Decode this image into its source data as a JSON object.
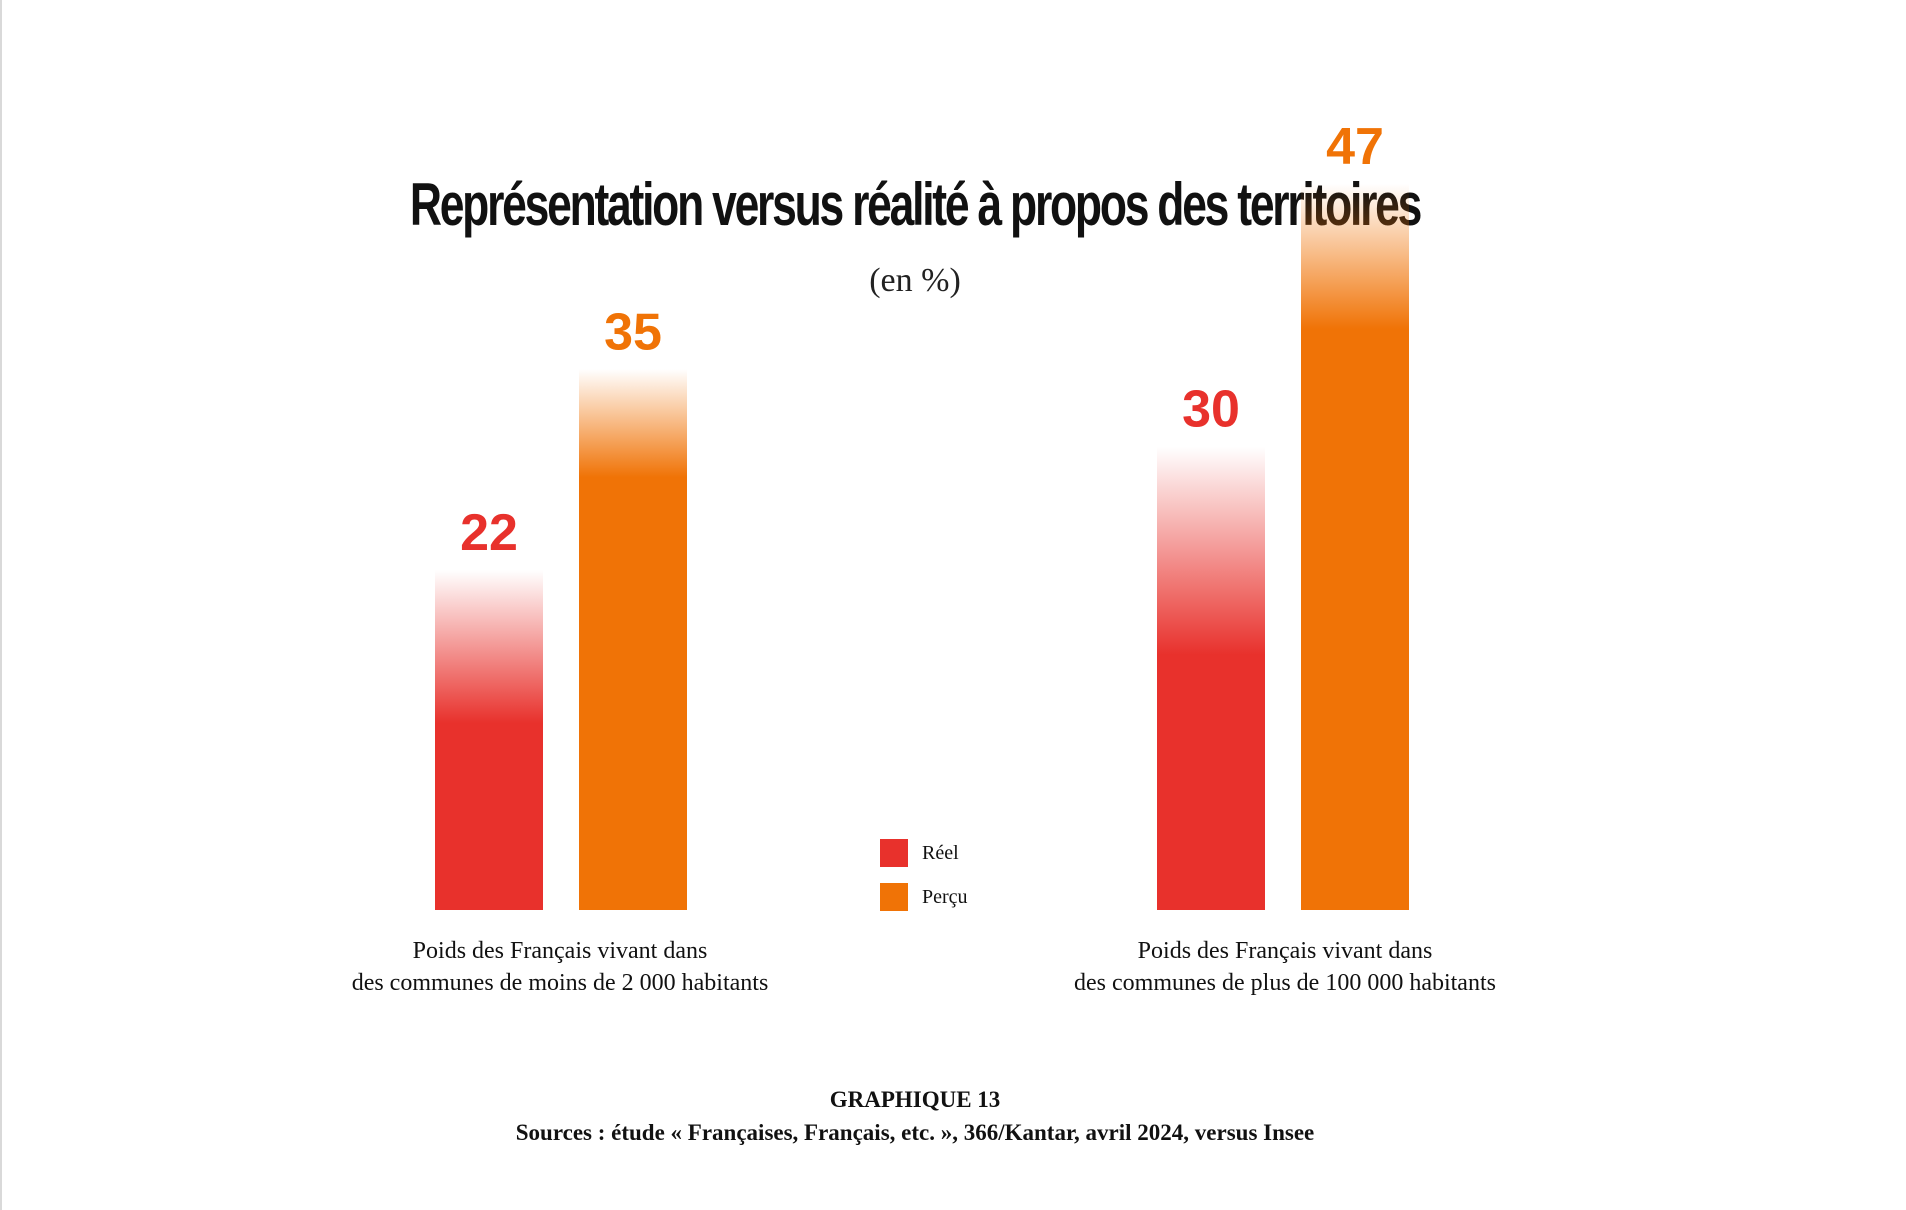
{
  "chart_data": {
    "type": "bar",
    "title": "Représentation versus réalité à propos des territoires",
    "subtitle": "(en %)",
    "categories": [
      [
        "Poids des Français vivant dans",
        "des communes de moins de 2 000 habitants"
      ],
      [
        "Poids des Français vivant dans",
        "des communes de plus de 100 000 habitants"
      ]
    ],
    "series": [
      {
        "name": "Réel",
        "color": "#e8312c",
        "values": [
          22,
          30
        ]
      },
      {
        "name": "Perçu",
        "color": "#f07306",
        "values": [
          35,
          47
        ]
      }
    ],
    "ylim": [
      0,
      50
    ],
    "grid": false,
    "legend_position": "center"
  },
  "footer": {
    "figure_label": "GRAPHIQUE 13",
    "sources": "Sources : étude « Françaises, Français, etc. », 366/Kantar, avril 2024, versus Insee"
  }
}
